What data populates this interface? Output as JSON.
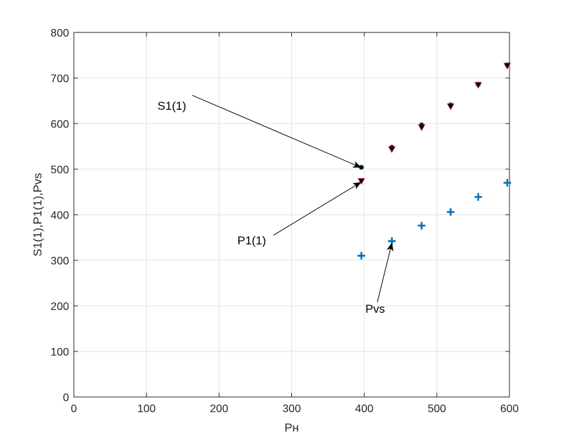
{
  "chart_data": {
    "type": "scatter",
    "title": "",
    "xlabel": "Рн",
    "ylabel": "S1(1),P1(1),Pvs",
    "xlim": [
      0,
      600
    ],
    "ylim": [
      0,
      800
    ],
    "xticks": [
      0,
      100,
      200,
      300,
      400,
      500,
      600
    ],
    "yticks": [
      0,
      100,
      200,
      300,
      400,
      500,
      600,
      700,
      800
    ],
    "grid": true,
    "x": [
      396,
      438,
      479,
      519,
      557,
      597
    ],
    "series": [
      {
        "name": "S1(1)",
        "marker": "circle",
        "face": "#000000",
        "edge": "#4DBEEE",
        "values": [
          504,
          548,
          597,
          641,
          686,
          729
        ]
      },
      {
        "name": "P1(1)",
        "marker": "triangle-down",
        "face": "#000000",
        "edge": "#A2142F",
        "values": [
          474,
          544,
          592,
          638,
          685,
          727
        ]
      },
      {
        "name": "Pvs",
        "marker": "plus",
        "face": "#0072BD",
        "edge": "#0072BD",
        "values": [
          310,
          342,
          376,
          406,
          439,
          470
        ]
      }
    ],
    "annotations": [
      {
        "text": "S1(1)",
        "target_series": 0,
        "target_index": 0
      },
      {
        "text": "P1(1)",
        "target_series": 1,
        "target_index": 0
      },
      {
        "text": "Pvs",
        "target_series": 2,
        "target_index": 1
      }
    ]
  }
}
